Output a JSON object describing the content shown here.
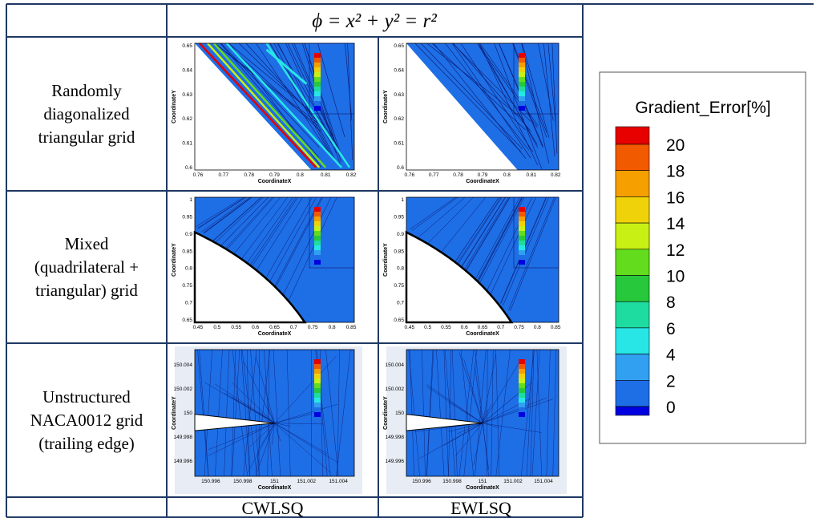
{
  "table": {
    "header": {
      "formula": "ϕ = x² + y² = r²"
    },
    "rows": [
      {
        "label_lines": [
          "Randomly",
          "diagonalized",
          "triangular grid"
        ]
      },
      {
        "label_lines": [
          "Mixed",
          "(quadrilateral +",
          "triangular) grid"
        ]
      },
      {
        "label_lines": [
          "Unstructured",
          "NACA0012 grid",
          "(trailing edge)"
        ]
      }
    ],
    "columns": [
      "CWLSQ",
      "EWLSQ"
    ]
  },
  "plots": [
    {
      "x_label": "CoordinateX",
      "y_label": "CoordinateY",
      "x_ticks": [
        "0.76",
        "0.77",
        "0.78",
        "0.79",
        "0.8",
        "0.81",
        "0.82"
      ],
      "y_ticks": [
        "0.6",
        "0.61",
        "0.62",
        "0.63",
        "0.64",
        "0.65"
      ]
    },
    {
      "x_label": "CoordinateX",
      "y_label": "CoordinateY",
      "x_ticks": [
        "0.45",
        "0.5",
        "0.55",
        "0.6",
        "0.65",
        "0.7",
        "0.75",
        "0.8",
        "0.85"
      ],
      "y_ticks": [
        "0.65",
        "0.7",
        "0.75",
        "0.8",
        "0.85",
        "0.9",
        "0.95",
        "1"
      ]
    },
    {
      "x_label": "CoordinateX",
      "y_label": "CoordinateY",
      "x_ticks": [
        "150.996",
        "150.998",
        "151",
        "151.002",
        "151.004"
      ],
      "y_ticks": [
        "149.996",
        "149.998",
        "150",
        "150.002",
        "150.004"
      ]
    }
  ],
  "legend": {
    "title": "Gradient_Error[%]",
    "levels": [
      20,
      18,
      16,
      14,
      12,
      10,
      8,
      6,
      4,
      2,
      0
    ],
    "colors": [
      "#e60000",
      "#f25a00",
      "#f5a000",
      "#f0d20a",
      "#c8f014",
      "#64dc1e",
      "#28c83c",
      "#1edca0",
      "#28e6e6",
      "#32a0f0",
      "#1e6ee6",
      "#0000e0"
    ]
  }
}
